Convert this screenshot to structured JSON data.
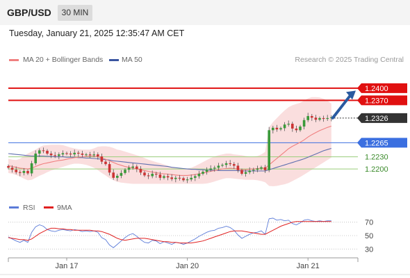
{
  "header": {
    "pair": "GBP/USD",
    "timeframe": "30 MIN"
  },
  "datetime": "Tuesday, January 21, 2025 12:35:47 AM CET",
  "legend": {
    "ma20_label": "MA 20 + Bollinger Bands",
    "ma50_label": "MA 50",
    "credit": "Research © 2025 Trading Central",
    "rsi_label": "RSI",
    "rsi_ma_label": "9MA"
  },
  "colors": {
    "resistance": "#e01010",
    "support": "#3b6fe0",
    "pivot": "#333333",
    "green_support": "#7fbf5a",
    "ma20": "#f08080",
    "ma50": "#6070b0",
    "bollinger_fill": "#fadada",
    "candle_up": "#3a9a3a",
    "candle_down": "#cc3333",
    "arrow": "#2a5aa0",
    "rsi": "#5b7bd8",
    "rsi_ma": "#e02020"
  },
  "chart_data": [
    {
      "type": "candlestick",
      "ylim": [
        1.2145,
        1.2455
      ],
      "x_tick_labels": [
        {
          "label": "Jan 17",
          "index": 15
        },
        {
          "label": "Jan 20",
          "index": 46
        },
        {
          "label": "Jan 21",
          "index": 77
        }
      ],
      "levels": [
        {
          "value": 1.24,
          "label": "1.2400",
          "kind": "resistance"
        },
        {
          "value": 1.237,
          "label": "1.2370",
          "kind": "resistance"
        },
        {
          "value": 1.2326,
          "label": "1.2326",
          "kind": "pivot"
        },
        {
          "value": 1.2265,
          "label": "1.2265",
          "kind": "support"
        },
        {
          "value": 1.223,
          "label": "1.2230",
          "kind": "green_support"
        },
        {
          "value": 1.22,
          "label": "1.2200",
          "kind": "green_support"
        }
      ],
      "close": [
        1.2203,
        1.2198,
        1.2192,
        1.219,
        1.2195,
        1.2189,
        1.2214,
        1.2238,
        1.2246,
        1.2245,
        1.2238,
        1.2234,
        1.2232,
        1.2236,
        1.2239,
        1.2238,
        1.2236,
        1.224,
        1.2238,
        1.2235,
        1.2236,
        1.2234,
        1.2236,
        1.2231,
        1.2218,
        1.2212,
        1.2191,
        1.2178,
        1.2183,
        1.219,
        1.2198,
        1.2203,
        1.2206,
        1.22,
        1.2191,
        1.2184,
        1.2182,
        1.2188,
        1.2186,
        1.2178,
        1.2182,
        1.2179,
        1.2175,
        1.2178,
        1.2177,
        1.2172,
        1.2174,
        1.2178,
        1.2182,
        1.2188,
        1.2193,
        1.2198,
        1.2201,
        1.2203,
        1.2208,
        1.221,
        1.2214,
        1.2212,
        1.2208,
        1.2197,
        1.2188,
        1.2192,
        1.2196,
        1.2198,
        1.2201,
        1.2204,
        1.2197,
        1.2296,
        1.2302,
        1.2298,
        1.2301,
        1.231,
        1.2312,
        1.23,
        1.2296,
        1.2305,
        1.2321,
        1.2331,
        1.2327,
        1.2322,
        1.2326,
        1.2324,
        1.2326,
        1.2328
      ],
      "ma20": [
        1.2208,
        1.2206,
        1.2204,
        1.2202,
        1.2201,
        1.22,
        1.2202,
        1.2206,
        1.221,
        1.2213,
        1.2215,
        1.2217,
        1.2219,
        1.2221,
        1.2222,
        1.2224,
        1.2226,
        1.2228,
        1.2229,
        1.223,
        1.2231,
        1.2232,
        1.2232,
        1.223,
        1.2227,
        1.2224,
        1.222,
        1.2216,
        1.2212,
        1.2209,
        1.2206,
        1.2204,
        1.2202,
        1.22,
        1.2198,
        1.2196,
        1.2194,
        1.2192,
        1.2191,
        1.2189,
        1.2188,
        1.2187,
        1.2186,
        1.2185,
        1.2184,
        1.2184,
        1.2184,
        1.2185,
        1.2186,
        1.2188,
        1.219,
        1.2192,
        1.2194,
        1.2196,
        1.2198,
        1.22,
        1.2201,
        1.2202,
        1.2201,
        1.22,
        1.2198,
        1.2198,
        1.2199,
        1.22,
        1.2201,
        1.2202,
        1.2202,
        1.221,
        1.2218,
        1.2226,
        1.2234,
        1.2242,
        1.225,
        1.2256,
        1.2261,
        1.2266,
        1.2272,
        1.2279,
        1.2285,
        1.229,
        1.2295,
        1.2299,
        1.2303,
        1.2306
      ],
      "ma50": [
        1.2238,
        1.2237,
        1.2236,
        1.2235,
        1.2234,
        1.2233,
        1.2232,
        1.2232,
        1.2232,
        1.2232,
        1.2231,
        1.2231,
        1.223,
        1.223,
        1.223,
        1.2229,
        1.2229,
        1.2229,
        1.2228,
        1.2228,
        1.2227,
        1.2227,
        1.2226,
        1.2225,
        1.2224,
        1.2223,
        1.2222,
        1.222,
        1.2219,
        1.2218,
        1.2217,
        1.2216,
        1.2215,
        1.2214,
        1.2213,
        1.2212,
        1.2211,
        1.221,
        1.2209,
        1.2208,
        1.2207,
        1.2206,
        1.2204,
        1.2203,
        1.2202,
        1.2201,
        1.22,
        1.2199,
        1.2199,
        1.2198,
        1.2198,
        1.2197,
        1.2197,
        1.2197,
        1.2196,
        1.2196,
        1.2196,
        1.2196,
        1.2196,
        1.2196,
        1.2195,
        1.2195,
        1.2195,
        1.2195,
        1.2195,
        1.2195,
        1.2195,
        1.2198,
        1.2201,
        1.2204,
        1.2207,
        1.221,
        1.2213,
        1.2216,
        1.2219,
        1.2222,
        1.2225,
        1.2229,
        1.2233,
        1.2237,
        1.2241,
        1.2245,
        1.2248,
        1.2251
      ],
      "bb_upper": [
        1.2225,
        1.2223,
        1.2222,
        1.2225,
        1.2232,
        1.2238,
        1.2243,
        1.2248,
        1.2254,
        1.2258,
        1.2259,
        1.226,
        1.226,
        1.226,
        1.2259,
        1.2256,
        1.2253,
        1.2251,
        1.2249,
        1.2248,
        1.2248,
        1.2248,
        1.2251,
        1.2255,
        1.2256,
        1.2256,
        1.2255,
        1.2252,
        1.2248,
        1.2246,
        1.2243,
        1.224,
        1.2237,
        1.2234,
        1.2231,
        1.2227,
        1.2223,
        1.222,
        1.2217,
        1.2214,
        1.2211,
        1.2208,
        1.2204,
        1.2202,
        1.22,
        1.22,
        1.2201,
        1.2203,
        1.2207,
        1.2212,
        1.2217,
        1.2222,
        1.2227,
        1.2231,
        1.2234,
        1.2236,
        1.2238,
        1.2238,
        1.2236,
        1.2235,
        1.2234,
        1.2232,
        1.2231,
        1.2231,
        1.2232,
        1.2236,
        1.2242,
        1.2303,
        1.2316,
        1.2326,
        1.2336,
        1.2345,
        1.2353,
        1.2358,
        1.2361,
        1.2364,
        1.2369,
        1.2375,
        1.2378,
        1.2378,
        1.2377,
        1.2374,
        1.2369,
        1.2362
      ],
      "bb_lower": [
        1.219,
        1.2188,
        1.2185,
        1.2181,
        1.2176,
        1.2172,
        1.2173,
        1.2178,
        1.2183,
        1.2187,
        1.2192,
        1.2196,
        1.2199,
        1.2202,
        1.2205,
        1.2208,
        1.2211,
        1.2213,
        1.2213,
        1.2212,
        1.221,
        1.2207,
        1.2203,
        1.2197,
        1.219,
        1.2184,
        1.2177,
        1.2172,
        1.2168,
        1.2166,
        1.2165,
        1.2164,
        1.2163,
        1.2163,
        1.2163,
        1.2163,
        1.2163,
        1.2163,
        1.2163,
        1.2163,
        1.2163,
        1.2163,
        1.2163,
        1.2163,
        1.2163,
        1.2163,
        1.2163,
        1.2163,
        1.2163,
        1.2163,
        1.2163,
        1.2164,
        1.2166,
        1.2169,
        1.2172,
        1.2175,
        1.2177,
        1.2177,
        1.2176,
        1.2175,
        1.2174,
        1.2173,
        1.2173,
        1.2173,
        1.2172,
        1.217,
        1.2167,
        1.2158,
        1.2157,
        1.2158,
        1.216,
        1.2162,
        1.2165,
        1.217,
        1.2175,
        1.218,
        1.2186,
        1.2192,
        1.2198,
        1.2204,
        1.221,
        1.2216,
        1.2222,
        1.2228
      ]
    },
    {
      "type": "line",
      "title": "RSI",
      "ylim": [
        20,
        80
      ],
      "y_ticks": [
        30,
        50,
        70
      ],
      "series": [
        {
          "name": "RSI",
          "values": [
            48,
            45,
            42,
            40,
            43,
            40,
            55,
            63,
            66,
            64,
            59,
            57,
            56,
            58,
            59,
            58,
            57,
            59,
            58,
            56,
            57,
            56,
            57,
            55,
            47,
            44,
            36,
            32,
            37,
            42,
            47,
            51,
            53,
            49,
            44,
            40,
            39,
            43,
            42,
            38,
            41,
            39,
            37,
            40,
            39,
            37,
            39,
            42,
            45,
            49,
            52,
            55,
            57,
            58,
            61,
            62,
            64,
            62,
            58,
            51,
            46,
            49,
            52,
            54,
            55,
            57,
            52,
            75,
            76,
            73,
            74,
            72,
            73,
            68,
            66,
            69,
            73,
            74,
            72,
            71,
            72,
            71,
            72,
            72
          ]
        },
        {
          "name": "9MA",
          "values": [
            47,
            46,
            45,
            44,
            44,
            43,
            45,
            49,
            53,
            56,
            59,
            61,
            61,
            60,
            60,
            59,
            59,
            58,
            58,
            58,
            58,
            58,
            57,
            57,
            56,
            54,
            52,
            49,
            46,
            44,
            43,
            44,
            45,
            46,
            46,
            46,
            45,
            44,
            43,
            42,
            41,
            41,
            40,
            40,
            39,
            39,
            39,
            39,
            40,
            41,
            42,
            44,
            46,
            48,
            50,
            52,
            54,
            56,
            57,
            57,
            57,
            56,
            55,
            54,
            53,
            52,
            52,
            55,
            58,
            61,
            64,
            66,
            68,
            70,
            71,
            71,
            71,
            71,
            71,
            71,
            71,
            71,
            71,
            71
          ]
        }
      ]
    }
  ]
}
